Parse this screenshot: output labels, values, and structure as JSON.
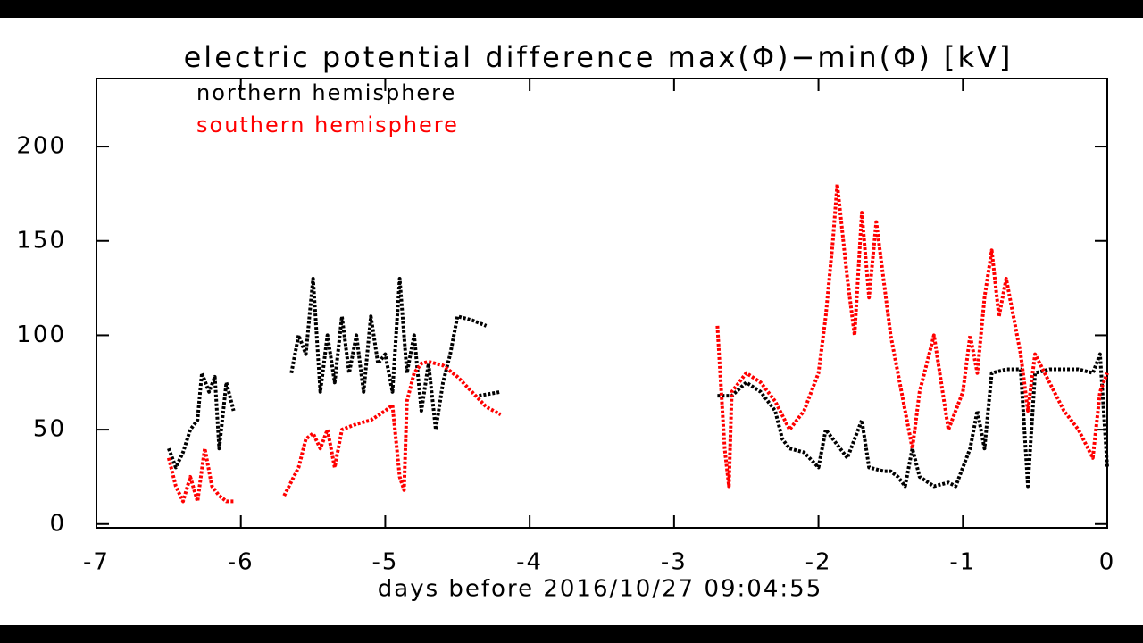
{
  "chart_data": {
    "type": "line",
    "title": "electric potential difference max(Φ)−min(Φ) [kV]",
    "xlabel": "days before 2016/10/27  09:04:55",
    "xlim": [
      -7,
      0
    ],
    "ylim": [
      -2,
      236
    ],
    "xticks": [
      -7,
      -6,
      -5,
      -4,
      -3,
      -2,
      -1,
      0
    ],
    "yticks": [
      0,
      50,
      100,
      150,
      200
    ],
    "series": [
      {
        "name": "northern hemisphere",
        "color": "#000000",
        "x": [
          -6.5,
          -6.45,
          -6.4,
          -6.35,
          -6.3,
          -6.27,
          -6.22,
          -6.18,
          -6.15,
          -6.1,
          -6.05,
          null,
          -5.65,
          -5.6,
          -5.55,
          -5.5,
          -5.45,
          -5.4,
          -5.35,
          -5.3,
          -5.25,
          -5.2,
          -5.15,
          -5.1,
          -5.05,
          -5.0,
          -4.95,
          -4.9,
          -4.85,
          -4.8,
          -4.75,
          -4.7,
          -4.65,
          -4.6,
          -4.55,
          -4.5,
          -4.4,
          -4.3,
          null,
          -4.35,
          -4.2,
          null,
          -2.7,
          -2.6,
          -2.5,
          -2.4,
          -2.3,
          -2.25,
          -2.2,
          -2.1,
          -2.0,
          -1.95,
          -1.85,
          -1.8,
          -1.7,
          -1.65,
          -1.55,
          -1.5,
          -1.45,
          -1.4,
          -1.35,
          -1.3,
          -1.2,
          -1.1,
          -1.05,
          -0.95,
          -0.9,
          -0.85,
          -0.8,
          -0.7,
          -0.6,
          -0.55,
          -0.5,
          -0.4,
          -0.3,
          -0.2,
          -0.1,
          -0.05,
          0
        ],
        "values": [
          40,
          30,
          38,
          50,
          55,
          80,
          70,
          78,
          40,
          75,
          60,
          null,
          80,
          100,
          90,
          130,
          70,
          100,
          75,
          110,
          80,
          100,
          70,
          110,
          85,
          90,
          70,
          130,
          80,
          100,
          60,
          85,
          50,
          75,
          90,
          110,
          108,
          105,
          null,
          68,
          70,
          null,
          68,
          68,
          75,
          70,
          60,
          45,
          40,
          38,
          30,
          50,
          40,
          35,
          55,
          30,
          28,
          28,
          25,
          20,
          40,
          25,
          20,
          22,
          20,
          40,
          60,
          40,
          80,
          82,
          82,
          20,
          80,
          82,
          82,
          82,
          80,
          90,
          30
        ]
      },
      {
        "name": "southern hemisphere",
        "color": "#ff0000",
        "x": [
          -6.5,
          -6.45,
          -6.4,
          -6.35,
          -6.3,
          -6.25,
          -6.2,
          -6.15,
          -6.1,
          -6.05,
          null,
          -5.7,
          -5.6,
          -5.55,
          -5.5,
          -5.45,
          -5.4,
          -5.35,
          -5.3,
          -5.2,
          -5.1,
          -5.0,
          -4.95,
          -4.9,
          -4.87,
          -4.85,
          -4.8,
          -4.75,
          -4.7,
          -4.6,
          -4.5,
          -4.4,
          -4.3,
          -4.2,
          null,
          -2.7,
          -2.65,
          -2.62,
          -2.6,
          -2.5,
          -2.4,
          -2.3,
          -2.2,
          -2.1,
          -2.0,
          -1.95,
          -1.9,
          -1.87,
          -1.8,
          -1.75,
          -1.7,
          -1.65,
          -1.6,
          -1.5,
          -1.45,
          -1.4,
          -1.35,
          -1.3,
          -1.2,
          -1.1,
          -1.0,
          -0.95,
          -0.9,
          -0.85,
          -0.8,
          -0.75,
          -0.7,
          -0.6,
          -0.55,
          -0.5,
          -0.4,
          -0.3,
          -0.2,
          -0.1,
          -0.05,
          0
        ],
        "values": [
          35,
          20,
          12,
          25,
          12,
          40,
          20,
          15,
          12,
          12,
          null,
          15,
          30,
          45,
          48,
          40,
          50,
          30,
          50,
          53,
          55,
          60,
          63,
          25,
          18,
          65,
          80,
          85,
          86,
          84,
          78,
          70,
          62,
          58,
          null,
          105,
          40,
          20,
          70,
          80,
          75,
          65,
          50,
          60,
          80,
          110,
          150,
          180,
          130,
          100,
          165,
          120,
          160,
          100,
          80,
          60,
          40,
          70,
          100,
          50,
          70,
          100,
          80,
          120,
          145,
          110,
          130,
          90,
          60,
          90,
          75,
          60,
          50,
          35,
          70,
          80
        ]
      }
    ]
  }
}
